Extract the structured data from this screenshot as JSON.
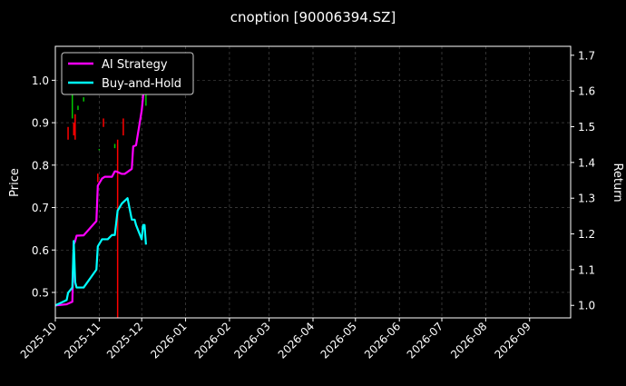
{
  "chart_data": {
    "type": "line",
    "title": "cnoption [90006394.SZ]",
    "ylabel_left": "Price",
    "ylabel_right": "Return",
    "grid": true,
    "legend_placement": "top-left",
    "x_tick_labels": [
      "2025-10",
      "2025-11",
      "2025-12",
      "2026-01",
      "2026-02",
      "2026-03",
      "2026-04",
      "2026-05",
      "2026-06",
      "2026-07",
      "2026-08",
      "2026-09"
    ],
    "x_tick_dates": [
      "2025-10-01",
      "2025-11-01",
      "2025-12-01",
      "2026-01-01",
      "2026-02-01",
      "2026-03-01",
      "2026-04-01",
      "2026-05-01",
      "2026-06-01",
      "2026-07-01",
      "2026-08-01",
      "2026-09-01"
    ],
    "xlim": [
      "2025-10-01",
      "2026-09-30"
    ],
    "y_left_ticks": [
      "0.5",
      "0.6",
      "0.7",
      "0.8",
      "0.9",
      "1.0"
    ],
    "y_left_lim": [
      0.44,
      1.08
    ],
    "y_right_ticks": [
      "1.0",
      "1.1",
      "1.2",
      "1.3",
      "1.4",
      "1.5",
      "1.6",
      "1.7"
    ],
    "y_right_lim": [
      0.965,
      1.725
    ],
    "colors": {
      "ai_strategy": "#ff00ff",
      "buy_and_hold": "#00ffff",
      "candle_up": "#00c800",
      "candle_down": "#ff0000",
      "background": "#000000",
      "text": "#ffffff",
      "grid": "#555555"
    },
    "series": [
      {
        "name": "AI Strategy",
        "axis": "right",
        "points": [
          [
            "2025-10-01",
            1.0
          ],
          [
            "2025-10-09",
            1.003
          ],
          [
            "2025-10-13",
            1.01
          ],
          [
            "2025-10-14",
            1.17
          ],
          [
            "2025-10-15",
            1.18
          ],
          [
            "2025-10-16",
            1.195
          ],
          [
            "2025-10-21",
            1.196
          ],
          [
            "2025-10-30",
            1.236
          ],
          [
            "2025-10-31",
            1.335
          ],
          [
            "2025-11-03",
            1.355
          ],
          [
            "2025-11-05",
            1.36
          ],
          [
            "2025-11-10",
            1.36
          ],
          [
            "2025-11-12",
            1.375
          ],
          [
            "2025-11-13",
            1.375
          ],
          [
            "2025-11-17",
            1.368
          ],
          [
            "2025-11-19",
            1.368
          ],
          [
            "2025-11-24",
            1.382
          ],
          [
            "2025-11-25",
            1.445
          ],
          [
            "2025-11-27",
            1.448
          ],
          [
            "2025-12-01",
            1.545
          ],
          [
            "2025-12-02",
            1.585
          ],
          [
            "2025-12-03",
            1.695
          ]
        ]
      },
      {
        "name": "Buy-and-Hold",
        "axis": "right",
        "points": [
          [
            "2025-10-01",
            1.0
          ],
          [
            "2025-10-09",
            1.015
          ],
          [
            "2025-10-10",
            1.035
          ],
          [
            "2025-10-13",
            1.05
          ],
          [
            "2025-10-14",
            1.18
          ],
          [
            "2025-10-15",
            1.065
          ],
          [
            "2025-10-16",
            1.05
          ],
          [
            "2025-10-21",
            1.05
          ],
          [
            "2025-10-30",
            1.1
          ],
          [
            "2025-10-31",
            1.165
          ],
          [
            "2025-11-03",
            1.185
          ],
          [
            "2025-11-07",
            1.185
          ],
          [
            "2025-11-10",
            1.197
          ],
          [
            "2025-11-12",
            1.197
          ],
          [
            "2025-11-14",
            1.265
          ],
          [
            "2025-11-17",
            1.285
          ],
          [
            "2025-11-21",
            1.3
          ],
          [
            "2025-11-24",
            1.24
          ],
          [
            "2025-11-26",
            1.24
          ],
          [
            "2025-11-27",
            1.225
          ],
          [
            "2025-12-01",
            1.185
          ],
          [
            "2025-12-02",
            1.225
          ],
          [
            "2025-12-03",
            1.225
          ],
          [
            "2025-12-04",
            1.17
          ]
        ]
      }
    ],
    "candles": [
      {
        "date": "2025-10-10",
        "low": 0.86,
        "high": 0.89,
        "up": false
      },
      {
        "date": "2025-10-13",
        "low": 0.91,
        "high": 0.97,
        "up": true
      },
      {
        "date": "2025-10-14",
        "low": 0.87,
        "high": 0.9,
        "up": false
      },
      {
        "date": "2025-10-15",
        "low": 0.86,
        "high": 0.92,
        "up": false
      },
      {
        "date": "2025-10-17",
        "low": 0.93,
        "high": 0.94,
        "up": true
      },
      {
        "date": "2025-10-21",
        "low": 0.95,
        "high": 0.96,
        "up": true
      },
      {
        "date": "2025-10-31",
        "low": 0.76,
        "high": 0.78,
        "up": false
      },
      {
        "date": "2025-11-01",
        "low": 0.835,
        "high": 0.838,
        "up": true
      },
      {
        "date": "2025-11-04",
        "low": 0.89,
        "high": 0.91,
        "up": false
      },
      {
        "date": "2025-11-12",
        "low": 0.84,
        "high": 0.85,
        "up": true
      },
      {
        "date": "2025-11-14",
        "low": 0.44,
        "high": 0.86,
        "up": false
      },
      {
        "date": "2025-11-18",
        "low": 0.87,
        "high": 0.91,
        "up": false
      },
      {
        "date": "2025-12-04",
        "low": 0.94,
        "high": 0.98,
        "up": true
      }
    ]
  }
}
